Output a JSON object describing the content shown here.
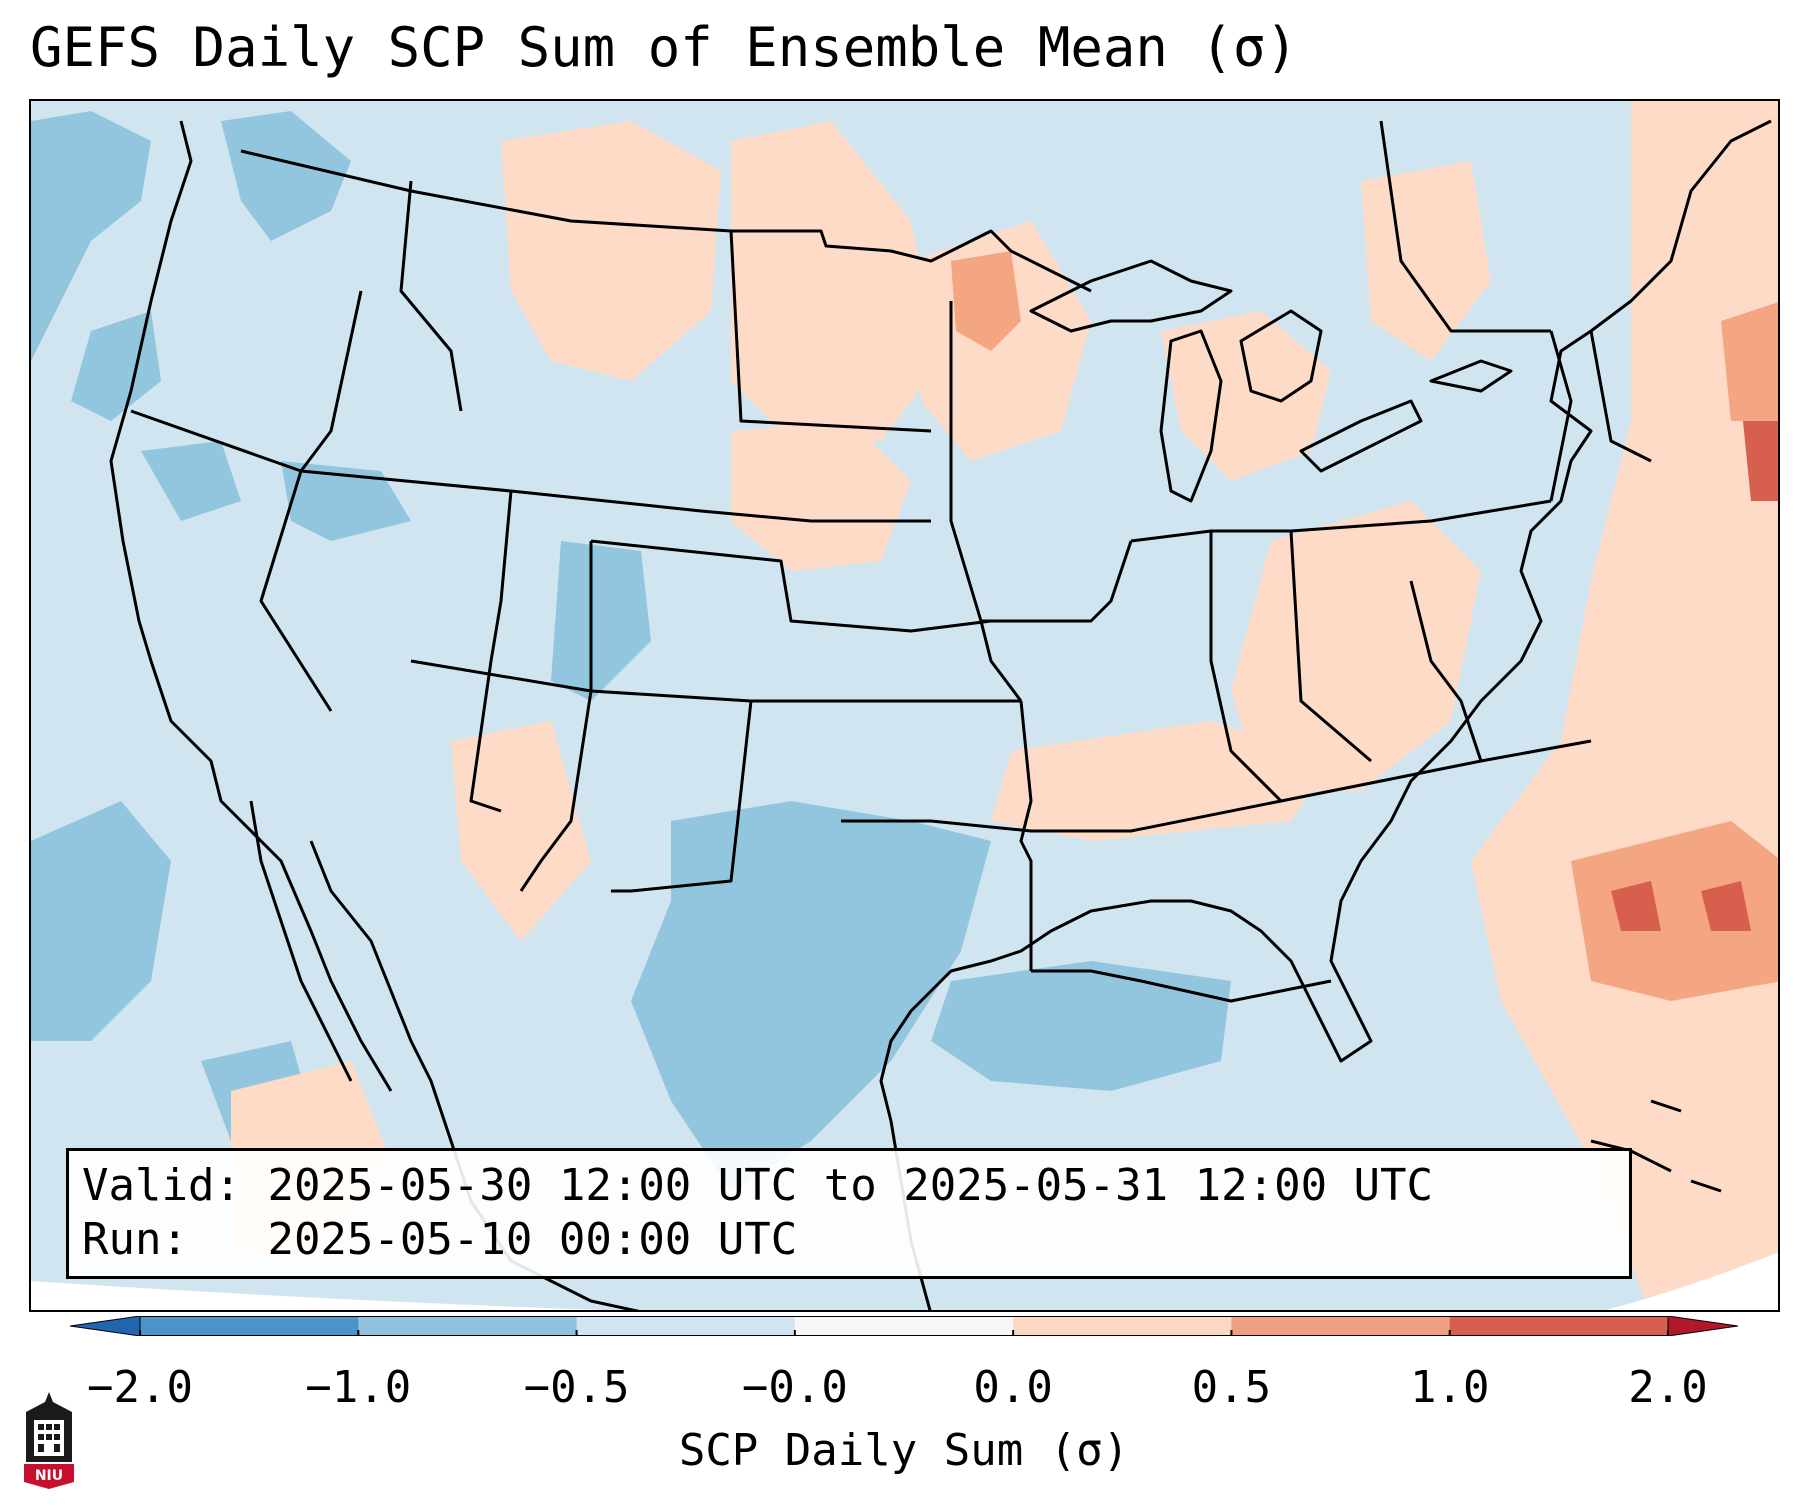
{
  "title": "GEFS Daily SCP Sum of Ensemble Mean (σ)",
  "info": {
    "valid_label": "Valid:",
    "valid_value": "2025-05-30 12:00 UTC to 2025-05-31 12:00 UTC",
    "run_label": "Run:",
    "run_value": "2025-05-10 00:00 UTC"
  },
  "colorbar": {
    "label": "SCP Daily Sum (σ)",
    "ticks": [
      "−2.0",
      "−1.0",
      "−0.5",
      "−0.0",
      "0.0",
      "0.5",
      "1.0",
      "2.0"
    ],
    "bin_colors": [
      "#4b93c8",
      "#8fc1de",
      "#d1e5f0",
      "#f7f7f7",
      "#fbd7c4",
      "#f0a081",
      "#d6604d"
    ],
    "extend_min_color": "#2166ac",
    "extend_max_color": "#b2182b"
  },
  "map": {
    "projection": "Lambert conformal (CONUS)",
    "background_value_color": "#d1e5f0",
    "regions_elevated": [
      "Upper Midwest",
      "Ohio Valley",
      "Mid-Atlantic",
      "Western Atlantic"
    ],
    "regions_suppressed": [
      "Texas",
      "Gulf of Mexico",
      "Pacific Northwest"
    ]
  },
  "logo": {
    "text": "NIU",
    "icon": "university-tower-icon"
  }
}
